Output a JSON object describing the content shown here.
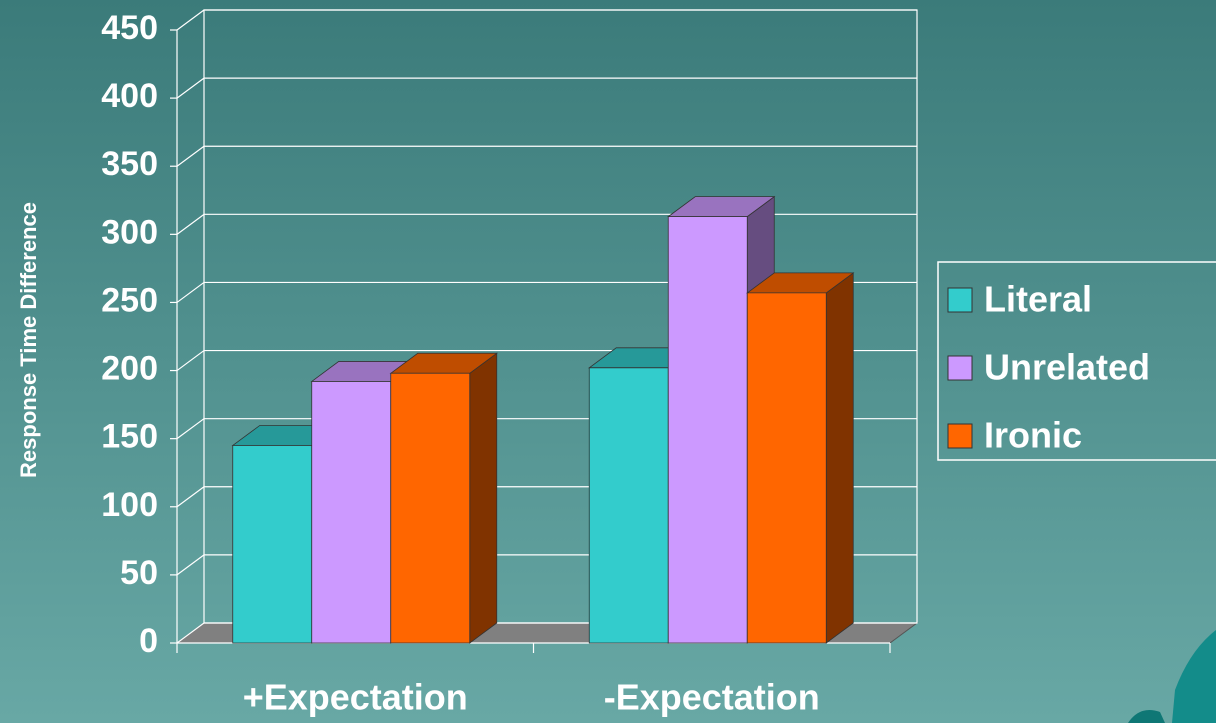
{
  "chart_data": {
    "type": "bar3d",
    "y_label": "Response Time Difference",
    "categories": [
      "+Expectation",
      "-Expectation"
    ],
    "series": [
      {
        "name": "Literal",
        "color": "#33cccc",
        "values": [
          145,
          202
        ]
      },
      {
        "name": "Unrelated",
        "color": "#cc99ff",
        "values": [
          192,
          313
        ]
      },
      {
        "name": "Ironic",
        "color": "#ff6600",
        "values": [
          198,
          257
        ]
      }
    ],
    "ylim": [
      0,
      450
    ],
    "yticks": [
      0,
      50,
      100,
      150,
      200,
      250,
      300,
      350,
      400,
      450
    ],
    "grid": true,
    "legend": "right"
  }
}
